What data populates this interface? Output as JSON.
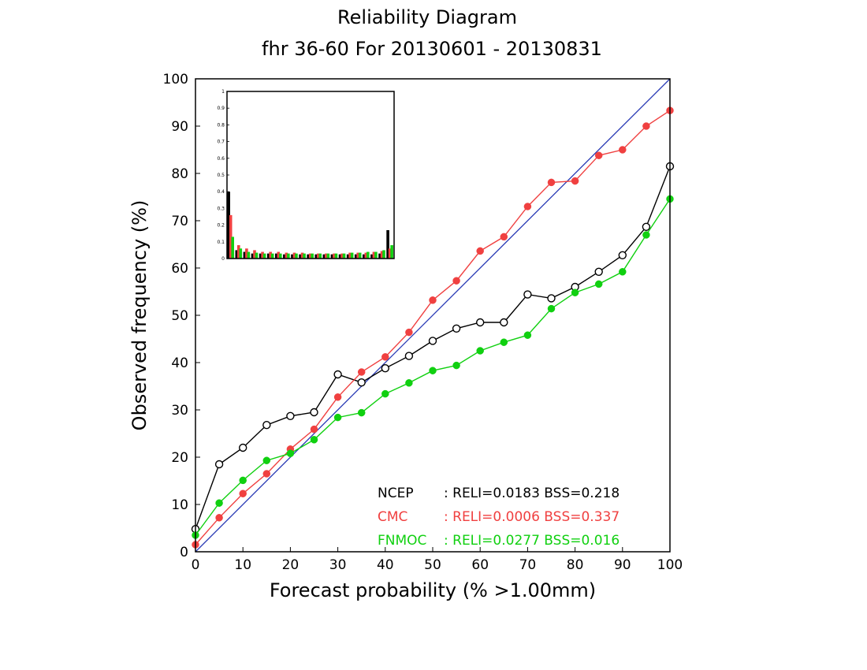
{
  "chart_data": {
    "type": "line",
    "title": "Reliability Diagram",
    "subtitle": "fhr 36-60 For 20130601 - 20130831",
    "xlabel": "Forecast probability (% >1.00mm)",
    "ylabel": "Observed frequency (%)",
    "xlim": [
      0,
      100
    ],
    "ylim": [
      0,
      100
    ],
    "x_ticks": [
      "0",
      "10",
      "20",
      "30",
      "40",
      "50",
      "60",
      "70",
      "80",
      "90",
      "100"
    ],
    "y_ticks": [
      "0",
      "10",
      "20",
      "30",
      "40",
      "50",
      "60",
      "70",
      "80",
      "90",
      "100"
    ],
    "grid": false,
    "diagonal_color": "#2a3bb5",
    "x": [
      0,
      5,
      10,
      15,
      20,
      25,
      30,
      35,
      40,
      45,
      50,
      55,
      60,
      65,
      70,
      75,
      80,
      85,
      90,
      95,
      100
    ],
    "series": [
      {
        "name": "NCEP",
        "color": "#000000",
        "marker": "open-circle",
        "values": [
          4.8,
          18.5,
          22.0,
          26.8,
          28.7,
          29.5,
          37.5,
          35.8,
          38.8,
          41.4,
          44.6,
          47.2,
          48.5,
          48.5,
          54.4,
          53.6,
          56.0,
          59.2,
          62.7,
          68.7,
          81.5
        ]
      },
      {
        "name": "CMC",
        "color": "#f04040",
        "marker": "filled-circle",
        "values": [
          1.5,
          7.2,
          12.3,
          16.5,
          21.7,
          25.9,
          32.7,
          38.0,
          41.2,
          46.4,
          53.2,
          57.3,
          63.6,
          66.6,
          73.0,
          78.1,
          78.4,
          83.8,
          85.0,
          90.0,
          93.3
        ]
      },
      {
        "name": "FNMOC",
        "color": "#10d010",
        "marker": "filled-circle",
        "values": [
          3.5,
          10.3,
          15.1,
          19.3,
          20.8,
          23.7,
          28.4,
          29.4,
          33.4,
          35.7,
          38.3,
          39.4,
          42.5,
          44.3,
          45.8,
          51.4,
          54.8,
          56.6,
          59.2,
          67.0,
          74.6
        ]
      }
    ],
    "stats": [
      {
        "label": "NCEP",
        "text": ": RELI=0.0183 BSS=0.218",
        "color": "#000000"
      },
      {
        "label": "CMC",
        "text": ": RELI=0.0006 BSS=0.337",
        "color": "#f04040"
      },
      {
        "label": "FNMOC",
        "text": ": RELI=0.0277 BSS=0.016",
        "color": "#10d010"
      }
    ],
    "inset": {
      "type": "bar",
      "ylim": [
        0,
        1
      ],
      "y_ticks": [
        "0",
        "0.1",
        "0.2",
        "0.3",
        "0.4",
        "0.5",
        "0.6",
        "0.7",
        "0.8",
        "0.9",
        "1"
      ],
      "grid": false,
      "series": [
        {
          "name": "NCEP",
          "color": "#000000",
          "values": [
            0.4,
            0.05,
            0.04,
            0.03,
            0.03,
            0.03,
            0.03,
            0.025,
            0.025,
            0.025,
            0.025,
            0.025,
            0.025,
            0.025,
            0.025,
            0.025,
            0.025,
            0.025,
            0.025,
            0.03,
            0.17
          ]
        },
        {
          "name": "CMC",
          "color": "#f04040",
          "values": [
            0.26,
            0.08,
            0.06,
            0.05,
            0.04,
            0.04,
            0.04,
            0.035,
            0.035,
            0.035,
            0.03,
            0.03,
            0.03,
            0.03,
            0.03,
            0.035,
            0.035,
            0.035,
            0.04,
            0.045,
            0.06
          ]
        },
        {
          "name": "FNMOC",
          "color": "#10d010",
          "values": [
            0.13,
            0.06,
            0.04,
            0.035,
            0.03,
            0.03,
            0.03,
            0.03,
            0.03,
            0.03,
            0.03,
            0.03,
            0.03,
            0.03,
            0.03,
            0.035,
            0.035,
            0.04,
            0.04,
            0.05,
            0.08
          ]
        }
      ]
    }
  }
}
